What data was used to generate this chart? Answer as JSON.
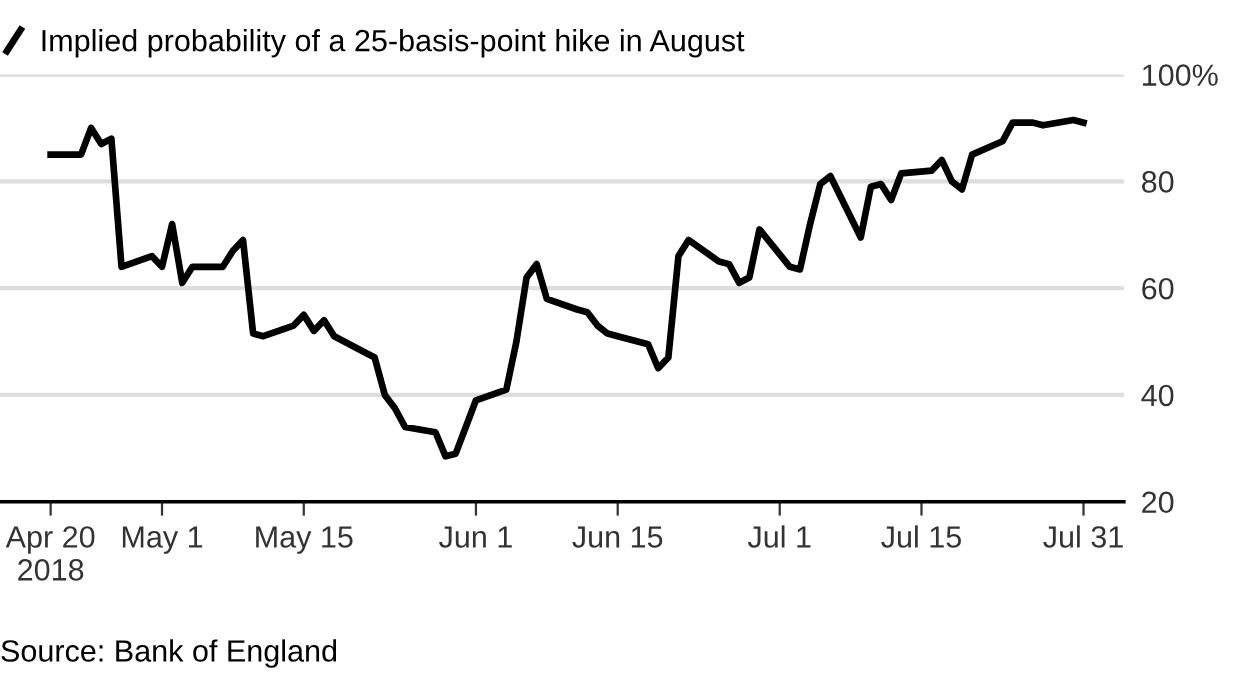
{
  "chart_data": {
    "type": "line",
    "x": [
      "2018-04-20",
      "2018-04-23",
      "2018-04-24",
      "2018-04-25",
      "2018-04-26",
      "2018-04-27",
      "2018-04-30",
      "2018-05-01",
      "2018-05-02",
      "2018-05-03",
      "2018-05-04",
      "2018-05-07",
      "2018-05-08",
      "2018-05-09",
      "2018-05-10",
      "2018-05-11",
      "2018-05-14",
      "2018-05-15",
      "2018-05-16",
      "2018-05-17",
      "2018-05-18",
      "2018-05-21",
      "2018-05-22",
      "2018-05-23",
      "2018-05-24",
      "2018-05-25",
      "2018-05-28",
      "2018-05-29",
      "2018-05-30",
      "2018-05-31",
      "2018-06-01",
      "2018-06-04",
      "2018-06-05",
      "2018-06-06",
      "2018-06-07",
      "2018-06-08",
      "2018-06-11",
      "2018-06-12",
      "2018-06-13",
      "2018-06-14",
      "2018-06-15",
      "2018-06-18",
      "2018-06-19",
      "2018-06-20",
      "2018-06-21",
      "2018-06-22",
      "2018-06-25",
      "2018-06-26",
      "2018-06-27",
      "2018-06-28",
      "2018-06-29",
      "2018-07-02",
      "2018-07-03",
      "2018-07-04",
      "2018-07-05",
      "2018-07-06",
      "2018-07-09",
      "2018-07-10",
      "2018-07-11",
      "2018-07-12",
      "2018-07-13",
      "2018-07-16",
      "2018-07-17",
      "2018-07-18",
      "2018-07-19",
      "2018-07-20",
      "2018-07-23",
      "2018-07-24",
      "2018-07-25",
      "2018-07-26",
      "2018-07-27",
      "2018-07-30",
      "2018-07-31"
    ],
    "series": [
      {
        "name": "Implied probability of a 25-basis-point hike in August",
        "color": "#000000",
        "values": [
          85,
          85,
          90,
          87,
          88,
          64,
          66,
          64,
          72,
          61,
          64,
          64,
          67,
          69,
          51.5,
          51,
          53,
          55,
          52,
          54,
          51,
          48,
          47,
          40,
          37.5,
          34,
          33,
          28.5,
          29,
          34,
          39,
          41,
          50,
          62,
          64.5,
          58,
          56,
          55.5,
          53,
          51.5,
          51,
          49.5,
          45,
          47,
          66,
          69,
          65,
          64.5,
          61,
          62,
          71,
          64,
          63.5,
          72,
          79.5,
          81,
          69.5,
          79,
          79.5,
          76.5,
          81.5,
          82,
          84,
          80,
          78.5,
          85,
          87.5,
          91,
          91,
          91,
          90.5,
          91.5,
          91
        ]
      }
    ],
    "xlim": [
      "2018-04-15",
      "2018-08-04"
    ],
    "xticks": [
      {
        "value": "2018-04-20",
        "label": "Apr 20\n2018"
      },
      {
        "value": "2018-05-01",
        "label": "May 1"
      },
      {
        "value": "2018-05-15",
        "label": "May 15"
      },
      {
        "value": "2018-06-01",
        "label": "Jun 1"
      },
      {
        "value": "2018-06-15",
        "label": "Jun 15"
      },
      {
        "value": "2018-07-01",
        "label": "Jul 1"
      },
      {
        "value": "2018-07-15",
        "label": "Jul 15"
      },
      {
        "value": "2018-07-31",
        "label": "Jul 31"
      }
    ],
    "ylim": [
      20,
      100
    ],
    "yticks": [
      20,
      40,
      60,
      80,
      {
        "value": 100,
        "label": "100%"
      }
    ],
    "grid": "y",
    "legend": "top left",
    "line_style": "solid",
    "marker": "none",
    "annotations": [
      "Source: Bank of England"
    ]
  }
}
